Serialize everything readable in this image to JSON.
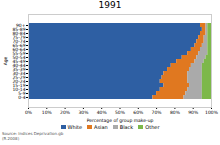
{
  "chart_data": {
    "type": "bar",
    "orientation": "horizontal",
    "stacked": true,
    "title": "1991",
    "xlabel": "Percentage of group make-up",
    "ylabel": "Age",
    "source": "Source: Indices Deprivation.gb\n(R.2008)",
    "categories": [
      "0-4",
      "5-9",
      "10-14",
      "15-19",
      "20-24",
      "25-29",
      "30-34",
      "35-39",
      "40-44",
      "45-49",
      "50-54",
      "55-59",
      "60-64",
      "65-69",
      "70-74",
      "75-79",
      "80-84",
      "85-89",
      "90+"
    ],
    "series": [
      {
        "name": "White",
        "color": "#2e5fa3",
        "values": [
          68,
          70,
          72,
          74,
          72,
          73,
          74,
          76,
          78,
          81,
          84,
          87,
          89,
          91,
          92,
          93,
          94,
          95,
          94
        ]
      },
      {
        "name": "Asian",
        "color": "#e07820",
        "values": [
          17,
          16,
          15,
          14,
          15,
          14,
          13,
          12,
          11,
          10,
          8,
          6,
          5,
          4,
          4,
          3,
          3,
          2,
          3
        ]
      },
      {
        "name": "Black",
        "color": "#aaaaaa",
        "values": [
          10,
          9,
          8,
          7,
          8,
          8,
          8,
          7,
          6,
          5,
          5,
          5,
          4,
          3,
          2,
          2,
          1,
          1,
          1
        ]
      },
      {
        "name": "Other",
        "color": "#7db84a",
        "values": [
          5,
          5,
          5,
          5,
          5,
          5,
          5,
          5,
          5,
          4,
          3,
          2,
          2,
          2,
          2,
          2,
          2,
          2,
          2
        ]
      }
    ],
    "xlim": [
      0,
      100
    ],
    "xticks": [
      {
        "value": 0,
        "label": "0%"
      },
      {
        "value": 10,
        "label": "10%"
      },
      {
        "value": 20,
        "label": "20%"
      },
      {
        "value": 30,
        "label": "30%"
      },
      {
        "value": 40,
        "label": "40%"
      },
      {
        "value": 50,
        "label": "50%"
      },
      {
        "value": 60,
        "label": "60%"
      },
      {
        "value": 70,
        "label": "70%"
      },
      {
        "value": 80,
        "label": "80%"
      },
      {
        "value": 90,
        "label": "90%"
      },
      {
        "value": 100,
        "label": "100%"
      }
    ],
    "grid": false,
    "legend": "bottom"
  }
}
